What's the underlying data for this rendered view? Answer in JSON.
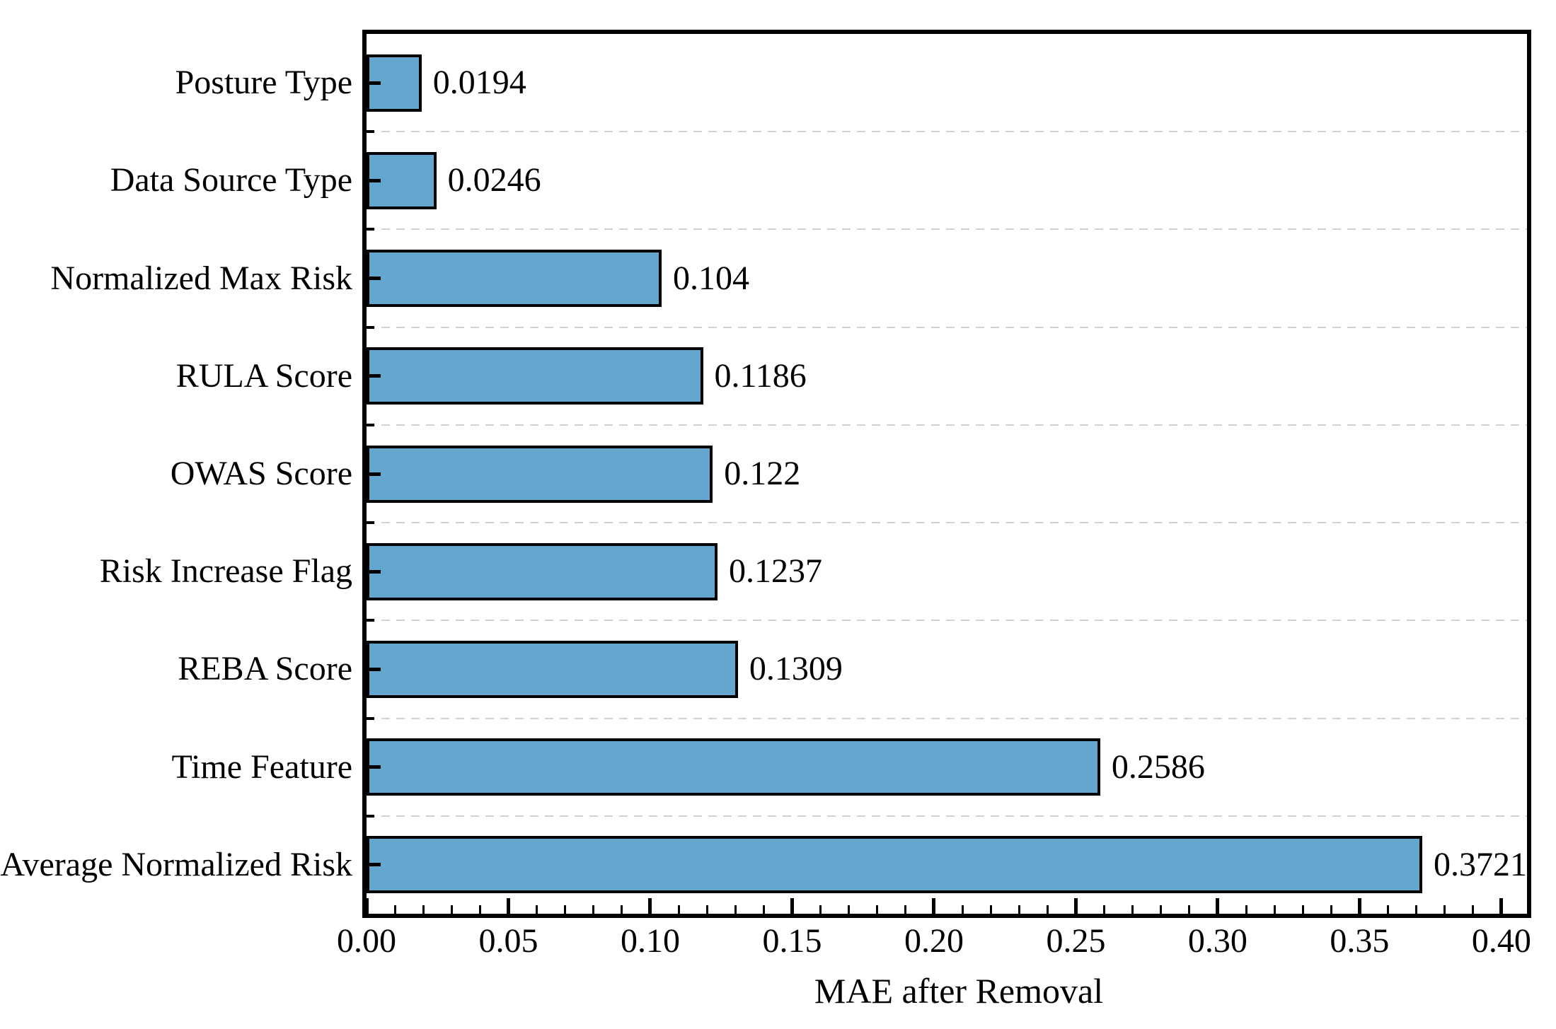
{
  "chart_data": {
    "type": "bar",
    "orientation": "horizontal",
    "title": "",
    "xlabel": "MAE after Removal",
    "ylabel": "",
    "xlim": [
      0,
      0.409
    ],
    "x_major_ticks": [
      0.0,
      0.05,
      0.1,
      0.15,
      0.2,
      0.25,
      0.3,
      0.35,
      0.4
    ],
    "x_tick_labels": [
      "0.00",
      "0.05",
      "0.10",
      "0.15",
      "0.20",
      "0.25",
      "0.30",
      "0.35",
      "0.40"
    ],
    "x_minor_tick_step": 0.01,
    "categories": [
      "Posture Type",
      "Data Source Type",
      "Normalized Max Risk",
      "RULA Score",
      "OWAS Score",
      "Risk Increase Flag",
      "REBA Score",
      "Time Feature",
      "Average Normalized Risk"
    ],
    "values": [
      0.0194,
      0.0246,
      0.104,
      0.1186,
      0.122,
      0.1237,
      0.1309,
      0.2586,
      0.3721
    ],
    "value_labels": [
      "0.0194",
      "0.0246",
      "0.104",
      "0.1186",
      "0.122",
      "0.1237",
      "0.1309",
      "0.2586",
      "0.3721"
    ],
    "bar_color": "#64a7ce",
    "bar_edge_color": "#000000",
    "grid": "horizontal dashed lines between category bands",
    "grid_color": "#d2d2d2",
    "frame_color": "#000000",
    "legend": "none"
  }
}
